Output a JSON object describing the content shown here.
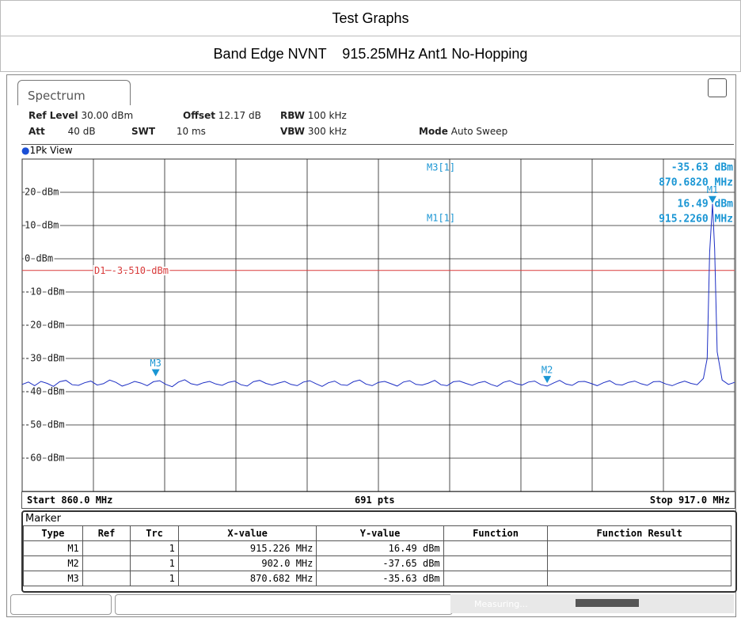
{
  "header": {
    "title": "Test Graphs",
    "subtitle": "Band Edge NVNT    915.25MHz Ant1 No-Hopping"
  },
  "tab": "Spectrum",
  "settings": [
    [
      {
        "k": "Ref Level",
        "v": "30.00 dBm"
      },
      {
        "k": "Offset",
        "v": "12.17 dB"
      },
      {
        "k": "RBW",
        "v": "100 kHz"
      }
    ],
    [
      {
        "k": "Att",
        "v": "40 dB"
      },
      {
        "k": "SWT",
        "v": "10 ms"
      },
      {
        "k": "VBW",
        "v": "300 kHz"
      },
      {
        "k": "Mode",
        "v": "Auto Sweep"
      }
    ]
  ],
  "view": "1Pk View",
  "chart_data": {
    "type": "line",
    "color": "#1d2fc4",
    "xlim": [
      860,
      917
    ],
    "ylim": [
      -70,
      30
    ],
    "yticks": [
      {
        "value": 20,
        "label": "20 dBm"
      },
      {
        "value": 10,
        "label": "10 dBm"
      },
      {
        "value": 0,
        "label": "0 dBm"
      },
      {
        "value": -10,
        "label": "-10 dBm"
      },
      {
        "value": -20,
        "label": "-20 dBm"
      },
      {
        "value": -30,
        "label": "-30 dBm"
      },
      {
        "value": -40,
        "label": "-40 dBm"
      },
      {
        "value": -50,
        "label": "-50 dBm"
      },
      {
        "value": -60,
        "label": "-60 dBm"
      }
    ],
    "grid": true,
    "display_line": {
      "label": "D1 -3.510 dBm",
      "value": -3.51,
      "color": "#d83a3a"
    },
    "x": [
      860,
      860.5,
      861,
      861.5,
      862,
      862.5,
      863,
      863.5,
      864,
      864.5,
      865,
      865.5,
      866,
      866.5,
      867,
      867.5,
      868,
      868.5,
      869,
      869.5,
      870,
      870.5,
      871,
      871.5,
      872,
      872.5,
      873,
      873.5,
      874,
      874.5,
      875,
      875.5,
      876,
      876.5,
      877,
      877.5,
      878,
      878.5,
      879,
      879.5,
      880,
      880.5,
      881,
      881.5,
      882,
      882.5,
      883,
      883.5,
      884,
      884.5,
      885,
      885.5,
      886,
      886.5,
      887,
      887.5,
      888,
      888.5,
      889,
      889.5,
      890,
      890.5,
      891,
      891.5,
      892,
      892.5,
      893,
      893.5,
      894,
      894.5,
      895,
      895.5,
      896,
      896.5,
      897,
      897.5,
      898,
      898.5,
      899,
      899.5,
      900,
      900.5,
      901,
      901.5,
      902,
      902.5,
      903,
      903.5,
      904,
      904.5,
      905,
      905.5,
      906,
      906.5,
      907,
      907.5,
      908,
      908.5,
      909,
      909.5,
      910,
      910.5,
      911,
      911.5,
      912,
      912.5,
      913,
      913.5,
      914,
      914.5,
      914.8,
      915,
      915.226,
      915.4,
      915.6,
      916,
      916.5,
      917
    ],
    "values": [
      -37.8,
      -37.1,
      -38.2,
      -36.9,
      -37.5,
      -38.4,
      -37.0,
      -36.6,
      -37.9,
      -38.1,
      -37.3,
      -36.8,
      -38.0,
      -37.6,
      -36.5,
      -37.2,
      -38.3,
      -37.7,
      -36.9,
      -37.4,
      -38.2,
      -37.0,
      -36.7,
      -37.8,
      -38.5,
      -37.1,
      -36.4,
      -37.6,
      -38.0,
      -37.3,
      -36.9,
      -37.7,
      -38.1,
      -37.2,
      -36.8,
      -37.9,
      -38.3,
      -37.0,
      -36.6,
      -37.5,
      -38.0,
      -37.4,
      -36.9,
      -37.8,
      -38.2,
      -37.1,
      -36.7,
      -37.6,
      -38.4,
      -37.3,
      -36.8,
      -37.9,
      -38.1,
      -37.0,
      -36.5,
      -37.7,
      -38.2,
      -37.2,
      -36.9,
      -37.6,
      -38.3,
      -37.1,
      -36.7,
      -37.8,
      -38.0,
      -37.4,
      -36.6,
      -37.9,
      -38.2,
      -37.0,
      -36.8,
      -37.5,
      -38.1,
      -37.3,
      -36.9,
      -37.8,
      -38.4,
      -37.2,
      -36.7,
      -37.6,
      -38.0,
      -37.1,
      -36.8,
      -37.9,
      -38.3,
      -37.4,
      -36.6,
      -37.7,
      -38.1,
      -37.0,
      -36.9,
      -37.5,
      -38.2,
      -37.3,
      -36.7,
      -37.8,
      -38.0,
      -37.2,
      -36.8,
      -37.6,
      -38.1,
      -37.0,
      -36.9,
      -37.7,
      -38.2,
      -37.4,
      -36.8,
      -37.5,
      -37.9,
      -36.0,
      -30,
      2,
      16.49,
      3,
      -28,
      -36.5,
      -37.8,
      -37.2
    ],
    "markers": [
      {
        "name": "M1",
        "x": 915.226,
        "y": 16.49
      },
      {
        "name": "M2",
        "x": 902.0,
        "y": -37.65
      },
      {
        "name": "M3",
        "x": 870.682,
        "y": -35.63
      }
    ],
    "marker_color": "#1a96d4",
    "readout": [
      {
        "name": "M3[1]",
        "y": "-35.63 dBm",
        "x": "870.6820 MHz"
      },
      {
        "name": "M1[1]",
        "y": "16.49 dBm",
        "x": "915.2260 MHz"
      }
    ]
  },
  "footer": {
    "start": "Start 860.0 MHz",
    "points": "691 pts",
    "stop": "Stop 917.0 MHz"
  },
  "table": {
    "title": "Marker",
    "header": [
      "Type",
      "Ref",
      "Trc",
      "X-value",
      "Y-value",
      "Function",
      "Function Result"
    ],
    "rows": [
      [
        "M1",
        "",
        "1",
        "915.226 MHz",
        "16.49 dBm",
        "",
        ""
      ],
      [
        "M2",
        "",
        "1",
        "902.0 MHz",
        "-37.65 dBm",
        "",
        ""
      ],
      [
        "M3",
        "",
        "1",
        "870.682 MHz",
        "-35.63 dBm",
        "",
        ""
      ]
    ]
  },
  "status": "Measuring..."
}
